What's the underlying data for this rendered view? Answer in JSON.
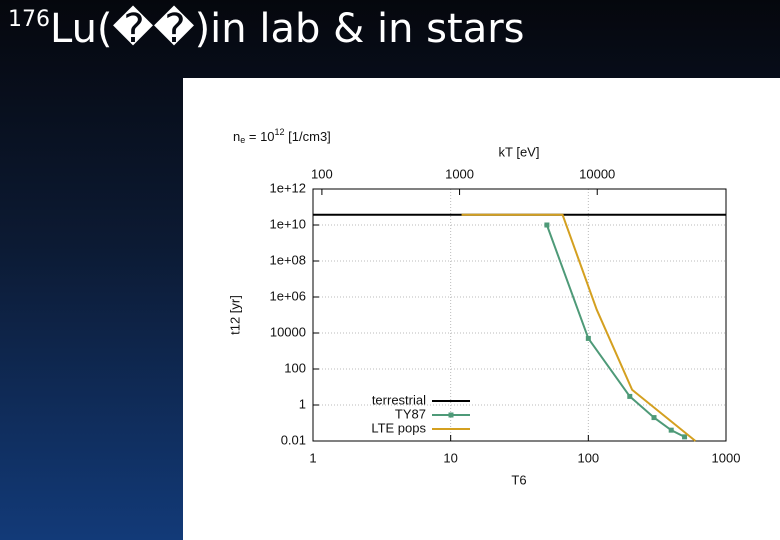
{
  "slide": {
    "title_sup": "176",
    "title": "Lu(��)in lab & in stars"
  },
  "chart_data": {
    "type": "line",
    "annotation": {
      "base": "n",
      "sub": "e",
      "mid": " = 10",
      "sup": "12",
      "end": " [1/cm3]"
    },
    "xlabel": "T6",
    "ylabel": "t12 [yr]",
    "x2label": "kT [eV]",
    "xscale": "log",
    "yscale": "log",
    "grid": true,
    "legend": "lower left",
    "xlim": [
      1,
      1000
    ],
    "xticks": [
      1,
      10,
      100,
      1000
    ],
    "x2lim": [
      86.17,
      86170
    ],
    "x2ticks": [
      100,
      1000,
      10000
    ],
    "ylim": [
      0.01,
      1000000000000.0
    ],
    "yticks": [
      {
        "value": 1000000000000.0,
        "label": "1e+12"
      },
      {
        "value": 10000000000.0,
        "label": "1e+10"
      },
      {
        "value": 100000000.0,
        "label": "1e+08"
      },
      {
        "value": 1000000.0,
        "label": "1e+06"
      },
      10000,
      100,
      1,
      0.01
    ],
    "series": [
      {
        "name": "terrestrial",
        "color": "#000000",
        "marker": "none",
        "x": [
          1,
          1000
        ],
        "values": [
          37000000000.0,
          37000000000.0
        ]
      },
      {
        "name": "TY87",
        "color": "#4e9a78",
        "marker": "square",
        "x": [
          50,
          100,
          200,
          300,
          400,
          500
        ],
        "values": [
          10000000000.0,
          5000,
          3,
          0.2,
          0.04,
          0.017
        ]
      },
      {
        "name": "LTE pops",
        "color": "#d4a020",
        "marker": "none",
        "x": [
          12,
          65,
          115,
          208,
          600
        ],
        "values": [
          37000000000.0,
          37000000000.0,
          200000,
          7,
          0.01
        ]
      }
    ]
  }
}
